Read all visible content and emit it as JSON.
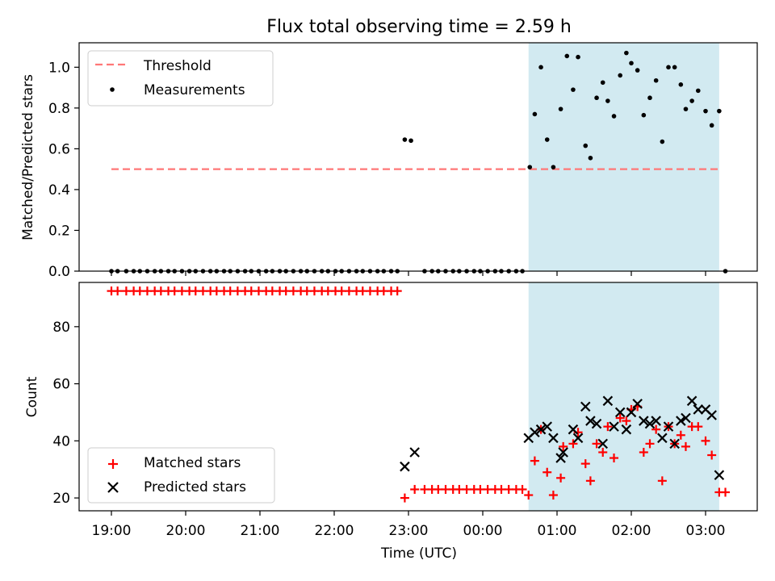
{
  "chart_data": [
    {
      "type": "scatter",
      "title": "Flux total observing time = 2.59 h",
      "xlabel": "",
      "ylabel": "Matched/Predicted stars",
      "ylim": [
        0,
        1.12
      ],
      "yticks": [
        "0.0",
        "0.2",
        "0.4",
        "0.6",
        "0.8",
        "1.0"
      ],
      "highlight_span": {
        "start": "00:37",
        "end": "03:11",
        "color": "#add8e6"
      },
      "legend_position": "top-left",
      "threshold": {
        "name": "Threshold",
        "value": 0.5,
        "start": "19:00",
        "end": "03:13",
        "color": "#ff7777",
        "style": "dashed"
      },
      "series": [
        {
          "name": "Measurements",
          "color": "#000000",
          "marker": "dot",
          "points": [
            [
              "19:00",
              0
            ],
            [
              "19:05",
              0
            ],
            [
              "19:12",
              0
            ],
            [
              "19:18",
              0
            ],
            [
              "19:23",
              0
            ],
            [
              "19:29",
              0
            ],
            [
              "19:35",
              0
            ],
            [
              "19:40",
              0
            ],
            [
              "19:46",
              0
            ],
            [
              "19:51",
              0
            ],
            [
              "19:57",
              0
            ],
            [
              "20:03",
              0
            ],
            [
              "20:08",
              0
            ],
            [
              "20:14",
              0
            ],
            [
              "20:20",
              0
            ],
            [
              "20:25",
              0
            ],
            [
              "20:31",
              0
            ],
            [
              "20:36",
              0
            ],
            [
              "20:42",
              0
            ],
            [
              "20:48",
              0
            ],
            [
              "20:53",
              0
            ],
            [
              "20:59",
              0
            ],
            [
              "21:05",
              0
            ],
            [
              "21:10",
              0
            ],
            [
              "21:16",
              0
            ],
            [
              "21:21",
              0
            ],
            [
              "21:27",
              0
            ],
            [
              "21:33",
              0
            ],
            [
              "21:38",
              0
            ],
            [
              "21:44",
              0
            ],
            [
              "21:50",
              0
            ],
            [
              "21:55",
              0
            ],
            [
              "22:01",
              0
            ],
            [
              "22:06",
              0
            ],
            [
              "22:12",
              0
            ],
            [
              "22:18",
              0
            ],
            [
              "22:23",
              0
            ],
            [
              "22:29",
              0
            ],
            [
              "22:35",
              0
            ],
            [
              "22:40",
              0
            ],
            [
              "22:46",
              0
            ],
            [
              "22:51",
              0
            ],
            [
              "22:57",
              0.645
            ],
            [
              "23:02",
              0.64
            ],
            [
              "23:13",
              0
            ],
            [
              "23:19",
              0
            ],
            [
              "23:24",
              0
            ],
            [
              "23:30",
              0
            ],
            [
              "23:36",
              0
            ],
            [
              "23:41",
              0
            ],
            [
              "23:47",
              0
            ],
            [
              "23:53",
              0
            ],
            [
              "23:58",
              0
            ],
            [
              "00:04",
              0
            ],
            [
              "00:10",
              0
            ],
            [
              "00:15",
              0
            ],
            [
              "00:21",
              0
            ],
            [
              "00:27",
              0
            ],
            [
              "00:32",
              0
            ],
            [
              "00:38",
              0.51
            ],
            [
              "00:42",
              0.77
            ],
            [
              "00:47",
              1.0
            ],
            [
              "00:52",
              0.645
            ],
            [
              "00:57",
              0.51
            ],
            [
              "01:03",
              0.795
            ],
            [
              "01:08",
              1.055
            ],
            [
              "01:13",
              0.89
            ],
            [
              "01:17",
              1.05
            ],
            [
              "01:23",
              0.615
            ],
            [
              "01:27",
              0.555
            ],
            [
              "01:32",
              0.85
            ],
            [
              "01:37",
              0.925
            ],
            [
              "01:41",
              0.835
            ],
            [
              "01:46",
              0.76
            ],
            [
              "01:51",
              0.96
            ],
            [
              "01:56",
              1.07
            ],
            [
              "02:00",
              1.02
            ],
            [
              "02:05",
              0.985
            ],
            [
              "02:10",
              0.765
            ],
            [
              "02:15",
              0.85
            ],
            [
              "02:20",
              0.935
            ],
            [
              "02:25",
              0.635
            ],
            [
              "02:30",
              1.0
            ],
            [
              "02:35",
              1.0
            ],
            [
              "02:40",
              0.915
            ],
            [
              "02:44",
              0.795
            ],
            [
              "02:49",
              0.835
            ],
            [
              "02:54",
              0.885
            ],
            [
              "03:00",
              0.785
            ],
            [
              "03:05",
              0.715
            ],
            [
              "03:11",
              0.785
            ],
            [
              "03:16",
              0
            ]
          ]
        }
      ]
    },
    {
      "type": "scatter",
      "title": "",
      "xlabel": "Time (UTC)",
      "ylabel": "Count",
      "ylim": [
        15.5,
        95.5
      ],
      "yticks": [
        "20",
        "40",
        "60",
        "80"
      ],
      "xticks": [
        "19:00",
        "20:00",
        "21:00",
        "22:00",
        "23:00",
        "00:00",
        "01:00",
        "02:00",
        "03:00"
      ],
      "highlight_span": {
        "start": "00:37",
        "end": "03:11",
        "color": "#add8e6"
      },
      "legend_position": "bottom-left",
      "series": [
        {
          "name": "Matched stars",
          "color": "#ff0000",
          "marker": "plus",
          "points": [
            [
              "19:00",
              92.5
            ],
            [
              "19:05",
              92.5
            ],
            [
              "19:12",
              92.5
            ],
            [
              "19:18",
              92.5
            ],
            [
              "19:23",
              92.5
            ],
            [
              "19:29",
              92.5
            ],
            [
              "19:35",
              92.5
            ],
            [
              "19:40",
              92.5
            ],
            [
              "19:46",
              92.5
            ],
            [
              "19:51",
              92.5
            ],
            [
              "19:57",
              92.5
            ],
            [
              "20:03",
              92.5
            ],
            [
              "20:08",
              92.5
            ],
            [
              "20:14",
              92.5
            ],
            [
              "20:20",
              92.5
            ],
            [
              "20:25",
              92.5
            ],
            [
              "20:31",
              92.5
            ],
            [
              "20:36",
              92.5
            ],
            [
              "20:42",
              92.5
            ],
            [
              "20:48",
              92.5
            ],
            [
              "20:53",
              92.5
            ],
            [
              "20:59",
              92.5
            ],
            [
              "21:05",
              92.5
            ],
            [
              "21:10",
              92.5
            ],
            [
              "21:16",
              92.5
            ],
            [
              "21:21",
              92.5
            ],
            [
              "21:27",
              92.5
            ],
            [
              "21:33",
              92.5
            ],
            [
              "21:38",
              92.5
            ],
            [
              "21:44",
              92.5
            ],
            [
              "21:50",
              92.5
            ],
            [
              "21:55",
              92.5
            ],
            [
              "22:01",
              92.5
            ],
            [
              "22:06",
              92.5
            ],
            [
              "22:12",
              92.5
            ],
            [
              "22:18",
              92.5
            ],
            [
              "22:23",
              92.5
            ],
            [
              "22:29",
              92.5
            ],
            [
              "22:35",
              92.5
            ],
            [
              "22:40",
              92.5
            ],
            [
              "22:46",
              92.5
            ],
            [
              "22:51",
              92.5
            ],
            [
              "22:57",
              20
            ],
            [
              "23:05",
              23
            ],
            [
              "23:13",
              23
            ],
            [
              "23:19",
              23
            ],
            [
              "23:24",
              23
            ],
            [
              "23:30",
              23
            ],
            [
              "23:36",
              23
            ],
            [
              "23:41",
              23
            ],
            [
              "23:47",
              23
            ],
            [
              "23:53",
              23
            ],
            [
              "23:58",
              23
            ],
            [
              "00:04",
              23
            ],
            [
              "00:10",
              23
            ],
            [
              "00:15",
              23
            ],
            [
              "00:21",
              23
            ],
            [
              "00:27",
              23
            ],
            [
              "00:32",
              23
            ],
            [
              "00:37",
              21
            ],
            [
              "00:42",
              33
            ],
            [
              "00:47",
              44
            ],
            [
              "00:52",
              29
            ],
            [
              "00:57",
              21
            ],
            [
              "01:03",
              27
            ],
            [
              "01:05",
              38
            ],
            [
              "01:13",
              39
            ],
            [
              "01:17",
              43
            ],
            [
              "01:23",
              32
            ],
            [
              "01:27",
              26
            ],
            [
              "01:32",
              39
            ],
            [
              "01:37",
              36
            ],
            [
              "01:41",
              45
            ],
            [
              "01:46",
              34
            ],
            [
              "01:51",
              48
            ],
            [
              "01:56",
              47
            ],
            [
              "02:00",
              51
            ],
            [
              "02:05",
              52
            ],
            [
              "02:10",
              36
            ],
            [
              "02:15",
              39
            ],
            [
              "02:20",
              44
            ],
            [
              "02:25",
              26
            ],
            [
              "02:30",
              45
            ],
            [
              "02:35",
              39
            ],
            [
              "02:40",
              42
            ],
            [
              "02:44",
              38
            ],
            [
              "02:49",
              45
            ],
            [
              "02:54",
              45
            ],
            [
              "03:00",
              40
            ],
            [
              "03:05",
              35
            ],
            [
              "03:11",
              22
            ],
            [
              "03:16",
              22
            ]
          ]
        },
        {
          "name": "Predicted stars",
          "color": "#000000",
          "marker": "x",
          "points": [
            [
              "22:57",
              31
            ],
            [
              "23:05",
              36
            ],
            [
              "00:37",
              41
            ],
            [
              "00:42",
              43
            ],
            [
              "00:47",
              44
            ],
            [
              "00:52",
              45
            ],
            [
              "00:57",
              41
            ],
            [
              "01:03",
              34
            ],
            [
              "01:05",
              36
            ],
            [
              "01:13",
              44
            ],
            [
              "01:17",
              41
            ],
            [
              "01:23",
              52
            ],
            [
              "01:27",
              47
            ],
            [
              "01:32",
              46
            ],
            [
              "01:37",
              39
            ],
            [
              "01:41",
              54
            ],
            [
              "01:46",
              45
            ],
            [
              "01:51",
              50
            ],
            [
              "01:56",
              44
            ],
            [
              "02:00",
              50
            ],
            [
              "02:05",
              53
            ],
            [
              "02:10",
              47
            ],
            [
              "02:15",
              46
            ],
            [
              "02:20",
              47
            ],
            [
              "02:25",
              41
            ],
            [
              "02:30",
              45
            ],
            [
              "02:35",
              39
            ],
            [
              "02:40",
              47
            ],
            [
              "02:44",
              48
            ],
            [
              "02:49",
              54
            ],
            [
              "02:54",
              51
            ],
            [
              "03:00",
              51
            ],
            [
              "03:05",
              49
            ],
            [
              "03:11",
              28
            ]
          ]
        }
      ]
    }
  ]
}
